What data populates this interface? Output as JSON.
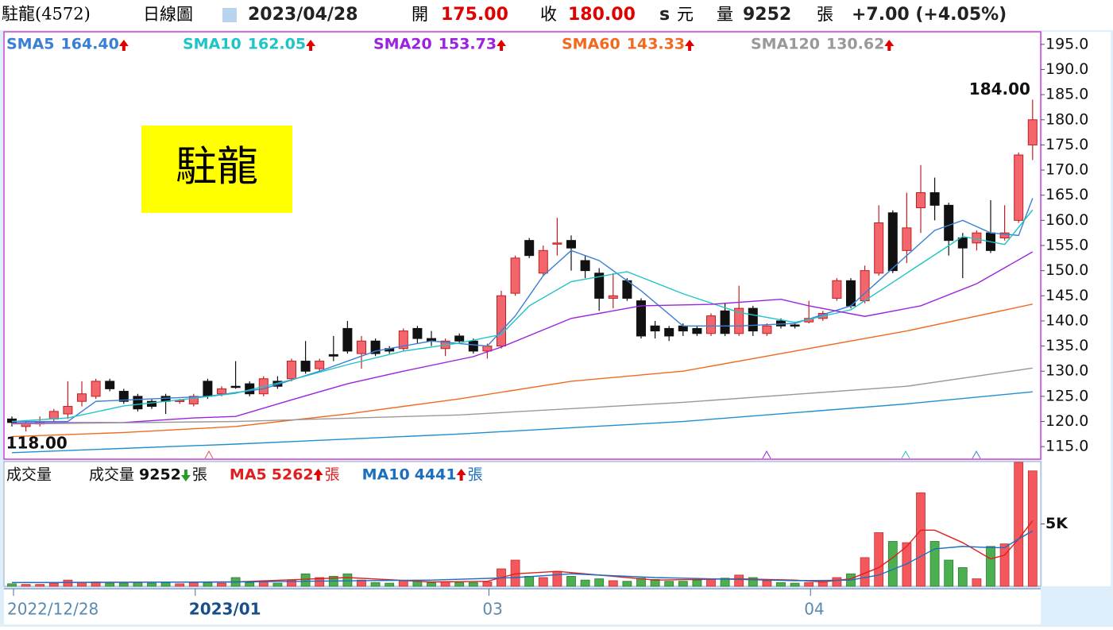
{
  "header": {
    "name": "駐龍(4572)",
    "period": "日線圖",
    "date": "2023/04/28",
    "open_label": "開",
    "open": "175.00",
    "close_label": "收",
    "close": "180.00",
    "s": "s",
    "unit": "元",
    "volume_label": "量",
    "volume_unit": "張",
    "change": "+7.00 (+4.05%)"
  },
  "badge": "駐龍",
  "chart_data": {
    "type": "candlestick",
    "open": [
      120.5,
      119,
      119.5,
      120.5,
      121.5,
      124,
      125,
      128,
      126,
      125,
      124,
      125,
      124,
      123.5,
      128,
      125.5,
      127,
      127.5,
      125.5,
      128,
      128.5,
      132,
      130.5,
      133.3,
      138.5,
      133.5,
      136,
      134.5,
      134.5,
      138.5,
      136.5,
      134.5,
      137,
      136,
      134,
      135,
      145.5,
      156,
      149.5,
      155.5,
      156,
      152,
      149.5,
      144.5,
      148,
      144,
      139,
      138.5,
      139,
      138.5,
      137.5,
      142,
      137.5,
      142.5,
      137.5,
      140,
      139.2,
      139.8,
      140.5,
      144.5,
      148,
      144,
      149.5,
      161.5,
      154,
      162.5,
      165.5,
      163,
      156.5,
      155.5,
      157.5,
      156.5,
      160,
      175
    ],
    "high": [
      121,
      120,
      121,
      122.5,
      128,
      128,
      128.5,
      128.5,
      126.5,
      125.5,
      124.5,
      125.5,
      124.5,
      125.5,
      128.5,
      127,
      132,
      128,
      129,
      129,
      132.5,
      136,
      132.5,
      137,
      140,
      137,
      136.5,
      135,
      138.5,
      139,
      138,
      136.5,
      137.5,
      136.5,
      135.5,
      146,
      153,
      156.5,
      155,
      160.5,
      157,
      153,
      150.5,
      149.5,
      148.5,
      144.5,
      140,
      139,
      139.5,
      139,
      141.5,
      143.5,
      147,
      143,
      139.5,
      140.5,
      139.5,
      144,
      142,
      148.5,
      148.5,
      151,
      163,
      162,
      165.5,
      171,
      168.5,
      163.5,
      157.5,
      158,
      164,
      163,
      173.5,
      184
    ],
    "low": [
      119,
      118,
      119,
      120,
      120.5,
      123,
      124.5,
      126,
      123.5,
      122,
      122.5,
      121.5,
      123.5,
      123,
      124.5,
      125,
      126.5,
      125,
      125,
      126.5,
      128,
      129.5,
      130,
      132,
      133.5,
      130.5,
      133,
      133.5,
      134,
      135.5,
      135,
      133,
      135.5,
      133.5,
      132.5,
      134.5,
      145,
      152.5,
      149,
      153,
      150,
      148.5,
      142,
      142.5,
      144,
      136.5,
      136.5,
      136,
      137,
      137,
      137,
      137,
      137,
      137,
      137,
      138.5,
      138.5,
      139.5,
      140,
      144,
      142.5,
      143.5,
      149,
      149.5,
      151.5,
      157.5,
      160,
      153,
      148.5,
      154,
      153.5,
      156,
      159.5,
      172
    ],
    "close": [
      119.8,
      119.5,
      120,
      122,
      123,
      125.5,
      128,
      126.5,
      124,
      122.5,
      123,
      124,
      124.2,
      125,
      125,
      126.5,
      126.8,
      125.5,
      128.5,
      127,
      132,
      130,
      132,
      133,
      134,
      136,
      133.5,
      134,
      138,
      136.5,
      136,
      136,
      136,
      134,
      135,
      145,
      152.5,
      153,
      154,
      155.5,
      154.5,
      150,
      144.5,
      145,
      144.5,
      137,
      138,
      137,
      138,
      137.5,
      141,
      137.5,
      142.5,
      138,
      139,
      139,
      139,
      140.5,
      141.5,
      148,
      143,
      150,
      159.5,
      150,
      158.5,
      165.5,
      163,
      156,
      154.5,
      157.5,
      154,
      157.5,
      173,
      180
    ],
    "up_color": "#f4666e",
    "down_color": "#111111",
    "ylim": [
      112.5,
      197.5
    ],
    "yticks": [
      {
        "value": 115,
        "label": "115.0"
      },
      {
        "value": 120,
        "label": "120.0"
      },
      {
        "value": 125,
        "label": "125.0"
      },
      {
        "value": 130,
        "label": "130.0"
      },
      {
        "value": 135,
        "label": "135.0"
      },
      {
        "value": 140,
        "label": "140.0"
      },
      {
        "value": 145,
        "label": "145.0"
      },
      {
        "value": 150,
        "label": "150.0"
      },
      {
        "value": 155,
        "label": "155.0"
      },
      {
        "value": 160,
        "label": "160.0"
      },
      {
        "value": 165,
        "label": "165.0"
      },
      {
        "value": 170,
        "label": "170.0"
      },
      {
        "value": 175,
        "label": "175.0"
      },
      {
        "value": 180,
        "label": "180.0"
      },
      {
        "value": 185,
        "label": "185.0"
      },
      {
        "value": 190,
        "label": "190.0"
      },
      {
        "value": 195,
        "label": "195.0"
      }
    ],
    "xticks": [
      {
        "value": 0,
        "label": "2022/12/28"
      },
      {
        "value": 13,
        "label": "2023/01"
      },
      {
        "value": 34,
        "label": "03"
      },
      {
        "value": 57,
        "label": "04"
      }
    ],
    "annotations": [
      {
        "value": 184,
        "label": "184.00"
      },
      {
        "value": 118,
        "label": "118.00"
      }
    ],
    "series": [
      {
        "name": "SMA5",
        "color": "#3a7fd5",
        "x": [
          0,
          4,
          6,
          10,
          14,
          18,
          22,
          26,
          30,
          34,
          36,
          38,
          40,
          42,
          45,
          48,
          52,
          56,
          60,
          62,
          64,
          66,
          68,
          70,
          72,
          73
        ],
        "values": [
          120,
          120,
          124,
          124.5,
          125,
          126.5,
          130,
          134,
          136,
          135,
          141,
          149,
          154,
          152,
          146,
          139,
          139,
          139.5,
          143,
          148,
          153,
          158,
          160,
          157.5,
          157,
          164.4
        ],
        "value_labels": [
          null,
          null,
          null,
          null,
          null,
          null,
          null,
          null,
          null,
          null,
          null,
          null,
          null,
          null,
          null,
          null,
          null,
          null,
          null,
          null,
          null,
          null,
          null,
          null,
          null,
          "164.40"
        ]
      },
      {
        "name": "SMA10",
        "color": "#1fc4c8",
        "x": [
          0,
          4,
          8,
          12,
          16,
          20,
          24,
          28,
          32,
          35,
          37,
          40,
          44,
          48,
          52,
          56,
          60,
          64,
          68,
          71,
          73
        ],
        "values": [
          120,
          120.7,
          123.1,
          124.3,
          125.6,
          128.3,
          131.3,
          134,
          135.6,
          137.3,
          143,
          147.8,
          149.8,
          145.4,
          141.7,
          139.7,
          142.2,
          149.5,
          156.8,
          155.2,
          162.05
        ],
        "value_labels": [
          null,
          null,
          null,
          null,
          null,
          null,
          null,
          null,
          null,
          null,
          null,
          null,
          null,
          null,
          null,
          null,
          null,
          null,
          null,
          null,
          "162.05"
        ]
      },
      {
        "name": "SMA20",
        "color": "#9a22e0",
        "x": [
          0,
          8,
          13,
          16,
          20,
          24,
          28,
          33,
          35,
          40,
          45,
          50,
          55,
          57,
          61,
          65,
          69,
          73
        ],
        "values": [
          119.7,
          119.8,
          120.7,
          121,
          124.3,
          127.5,
          130,
          132.9,
          134.8,
          140.5,
          143,
          143.3,
          144.3,
          143,
          140.9,
          143,
          147.4,
          153.73
        ],
        "value_labels": [
          null,
          null,
          null,
          null,
          null,
          null,
          null,
          null,
          null,
          null,
          null,
          null,
          null,
          null,
          null,
          null,
          null,
          "153.73"
        ]
      },
      {
        "name": "SMA60",
        "color": "#f06a20",
        "x": [
          0,
          8,
          16,
          24,
          32,
          40,
          48,
          56,
          64,
          73
        ],
        "values": [
          117,
          117.8,
          119,
          121.5,
          124.5,
          128,
          130,
          134,
          138,
          143.33
        ],
        "value_labels": [
          null,
          null,
          null,
          null,
          null,
          null,
          null,
          null,
          null,
          "143.33"
        ]
      },
      {
        "name": "SMA120",
        "color": "#999999",
        "x": [
          0,
          16,
          32,
          48,
          64,
          73
        ],
        "values": [
          119.5,
          120,
          121.3,
          123.8,
          127,
          130.62
        ],
        "value_labels": [
          null,
          null,
          null,
          null,
          null,
          "130.62"
        ]
      },
      {
        "color": "#1e90d0",
        "x": [
          0,
          16,
          32,
          48,
          64,
          73
        ],
        "values": [
          113.8,
          115.5,
          117.5,
          120,
          123.5,
          125.9
        ]
      }
    ],
    "volume": {
      "title": "成交量",
      "name": "成交量",
      "unit": "張",
      "up_color": "#f4585c",
      "down_color": "#4caf50",
      "values": [
        200,
        150,
        150,
        250,
        500,
        300,
        350,
        250,
        250,
        300,
        250,
        300,
        200,
        300,
        300,
        250,
        700,
        300,
        350,
        250,
        500,
        1000,
        700,
        800,
        1000,
        500,
        300,
        250,
        450,
        400,
        300,
        350,
        300,
        300,
        350,
        1400,
        2100,
        800,
        700,
        1200,
        800,
        500,
        600,
        450,
        400,
        650,
        550,
        400,
        400,
        500,
        600,
        650,
        900,
        700,
        450,
        300,
        250,
        300,
        400,
        700,
        1000,
        2300,
        4300,
        3600,
        3500,
        7500,
        3600,
        2100,
        1500,
        600,
        3200,
        3400,
        9935,
        9252
      ],
      "ylim": [
        0,
        10000
      ],
      "yticks": [
        {
          "value": 5000,
          "label": "5K"
        }
      ],
      "series": [
        {
          "name": "MA5",
          "color": "#e02020",
          "x": [
            0,
            8,
            16,
            24,
            30,
            34,
            36,
            39,
            42,
            46,
            52,
            56,
            58,
            60,
            62,
            63,
            64,
            65,
            66,
            68,
            70,
            71,
            72,
            73
          ],
          "values": [
            300,
            320,
            350,
            700,
            350,
            400,
            1000,
            1200,
            900,
            500,
            600,
            500,
            350,
            600,
            1500,
            2300,
            3200,
            4500,
            4500,
            3500,
            2200,
            2500,
            3800,
            5262
          ]
        },
        {
          "name": "MA10",
          "color": "#1a6fc0",
          "x": [
            0,
            16,
            30,
            36,
            40,
            46,
            56,
            60,
            62,
            64,
            66,
            68,
            70,
            71,
            72,
            73
          ],
          "values": [
            300,
            350,
            500,
            700,
            1000,
            700,
            450,
            500,
            900,
            1800,
            3000,
            3200,
            3100,
            3100,
            3800,
            4441
          ]
        }
      ]
    }
  }
}
